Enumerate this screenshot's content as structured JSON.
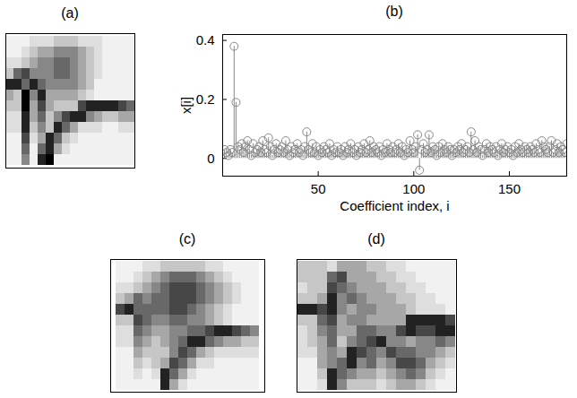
{
  "chart_data": [
    {
      "type": "heatmap",
      "title": "(a)",
      "tick_labels": false,
      "clim": [
        0,
        9
      ],
      "color": "greys",
      "cells": [
        [
          1,
          1,
          1,
          2,
          2,
          2,
          3,
          3,
          3,
          2,
          2,
          2,
          1,
          1,
          1,
          1
        ],
        [
          1,
          1,
          2,
          3,
          4,
          4,
          5,
          5,
          5,
          4,
          3,
          2,
          1,
          1,
          1,
          1
        ],
        [
          2,
          2,
          3,
          4,
          5,
          5,
          6,
          6,
          5,
          4,
          3,
          2,
          1,
          1,
          1,
          1
        ],
        [
          3,
          6,
          7,
          5,
          5,
          5,
          6,
          6,
          5,
          4,
          3,
          2,
          1,
          1,
          1,
          1
        ],
        [
          8,
          8,
          6,
          8,
          6,
          5,
          5,
          5,
          5,
          4,
          3,
          1,
          1,
          1,
          1,
          1
        ],
        [
          4,
          3,
          9,
          5,
          8,
          4,
          4,
          4,
          4,
          3,
          2,
          1,
          1,
          1,
          1,
          1
        ],
        [
          3,
          3,
          9,
          4,
          7,
          4,
          3,
          3,
          3,
          7,
          8,
          8,
          8,
          8,
          7,
          6
        ],
        [
          2,
          2,
          8,
          4,
          6,
          3,
          5,
          7,
          8,
          8,
          5,
          4,
          3,
          3,
          4,
          4
        ],
        [
          2,
          2,
          8,
          3,
          5,
          3,
          8,
          6,
          4,
          2,
          2,
          2,
          1,
          1,
          2,
          2
        ],
        [
          1,
          1,
          7,
          2,
          4,
          8,
          6,
          3,
          2,
          1,
          1,
          1,
          1,
          1,
          1,
          1
        ],
        [
          1,
          1,
          6,
          1,
          6,
          8,
          4,
          2,
          1,
          1,
          1,
          1,
          1,
          1,
          1,
          1
        ],
        [
          1,
          1,
          5,
          1,
          8,
          9,
          1,
          1,
          1,
          1,
          1,
          1,
          1,
          1,
          1,
          1
        ]
      ]
    },
    {
      "type": "stem",
      "title": "(b)",
      "x_label": "Coefficient index, i",
      "y_label": "x[i]",
      "color": "#888888",
      "marker": "circle",
      "xlim": [
        0,
        180
      ],
      "xticks": [
        50,
        100,
        150
      ],
      "ylim": [
        -0.06,
        0.42
      ],
      "yticks": [
        0,
        0.2,
        0.4
      ],
      "x": [
        1,
        2,
        3,
        4,
        5,
        6,
        7,
        8,
        9,
        10,
        11,
        12,
        13,
        14,
        15,
        16,
        17,
        18,
        19,
        20,
        21,
        22,
        23,
        24,
        25,
        26,
        27,
        28,
        29,
        30,
        31,
        32,
        33,
        34,
        35,
        36,
        37,
        38,
        39,
        40,
        41,
        42,
        43,
        44,
        45,
        46,
        47,
        48,
        49,
        50,
        51,
        52,
        53,
        54,
        55,
        56,
        57,
        58,
        59,
        60,
        61,
        62,
        63,
        64,
        65,
        66,
        67,
        68,
        69,
        70,
        71,
        72,
        73,
        74,
        75,
        76,
        77,
        78,
        79,
        80,
        81,
        82,
        83,
        84,
        85,
        86,
        87,
        88,
        89,
        90,
        91,
        92,
        93,
        94,
        95,
        96,
        97,
        98,
        99,
        100,
        101,
        102,
        103,
        104,
        105,
        106,
        107,
        108,
        109,
        110,
        111,
        112,
        113,
        114,
        115,
        116,
        117,
        118,
        119,
        120,
        121,
        122,
        123,
        124,
        125,
        126,
        127,
        128,
        129,
        130,
        131,
        132,
        133,
        134,
        135,
        136,
        137,
        138,
        139,
        140,
        141,
        142,
        143,
        144,
        145,
        146,
        147,
        148,
        149,
        150,
        151,
        152,
        153,
        154,
        155,
        156,
        157,
        158,
        159,
        160,
        161,
        162,
        163,
        164,
        165,
        166,
        167,
        168,
        169,
        170,
        171,
        172,
        173,
        174,
        175,
        176,
        177,
        178,
        179,
        180
      ],
      "values": [
        0.03,
        0.02,
        0.01,
        0.03,
        0.02,
        0.38,
        0.19,
        0.04,
        0.03,
        0.05,
        0.02,
        0.04,
        0.06,
        0.03,
        0.01,
        0.05,
        0.02,
        0.03,
        0.04,
        0.02,
        0.06,
        0.03,
        0.02,
        0.07,
        0.04,
        0.01,
        0.03,
        0.05,
        0.02,
        0.03,
        0.04,
        0.02,
        0.06,
        0.03,
        0.01,
        0.04,
        0.02,
        0.03,
        0.05,
        0.02,
        0.03,
        0.01,
        0.04,
        0.09,
        0.03,
        0.02,
        0.05,
        0.02,
        0.04,
        0.01,
        0.03,
        0.02,
        0.04,
        0.03,
        0.02,
        0.05,
        0.01,
        0.03,
        0.02,
        0.04,
        0.02,
        0.03,
        0.01,
        0.04,
        0.02,
        0.03,
        0.05,
        0.02,
        0.03,
        0.01,
        0.04,
        0.02,
        0.03,
        0.05,
        0.02,
        0.03,
        0.06,
        0.02,
        0.04,
        0.03,
        0.02,
        0.04,
        0.01,
        0.03,
        0.02,
        0.05,
        0.03,
        0.02,
        0.04,
        0.02,
        0.03,
        0.05,
        0.02,
        0.04,
        0.01,
        0.03,
        0.02,
        0.06,
        0.03,
        0.02,
        0.04,
        0.08,
        -0.04,
        0.03,
        0.05,
        0.02,
        0.03,
        0.08,
        0.02,
        0.04,
        0.03,
        0.01,
        0.04,
        0.02,
        0.05,
        0.03,
        0.02,
        0.04,
        0.03,
        0.01,
        0.03,
        0.02,
        0.04,
        0.03,
        0.05,
        0.02,
        0.03,
        0.04,
        0.02,
        0.09,
        0.03,
        0.06,
        0.02,
        0.04,
        0.03,
        0.01,
        0.03,
        0.05,
        0.02,
        0.04,
        0.03,
        0.02,
        0.04,
        0.01,
        0.03,
        0.05,
        0.02,
        0.03,
        0.04,
        0.02,
        0.03,
        0.01,
        0.04,
        0.02,
        0.05,
        0.03,
        0.02,
        0.04,
        0.03,
        0.02,
        0.04,
        0.03,
        0.02,
        0.05,
        0.03,
        0.02,
        0.06,
        0.04,
        0.03,
        0.02,
        0.04,
        0.06,
        0.02,
        0.03,
        0.05,
        0.02,
        0.04,
        0.03,
        0.02,
        0.05
      ]
    },
    {
      "type": "heatmap",
      "title": "(c)",
      "tick_labels": false,
      "clim": [
        0,
        9
      ],
      "color": "greys",
      "cells": [
        [
          1,
          1,
          1,
          2,
          2,
          3,
          3,
          3,
          3,
          3,
          2,
          2,
          1,
          1,
          1,
          1
        ],
        [
          1,
          1,
          2,
          3,
          4,
          5,
          6,
          6,
          6,
          5,
          4,
          3,
          2,
          1,
          1,
          1
        ],
        [
          2,
          2,
          3,
          4,
          5,
          6,
          7,
          7,
          7,
          6,
          5,
          4,
          3,
          2,
          1,
          1
        ],
        [
          3,
          4,
          6,
          5,
          6,
          6,
          7,
          7,
          7,
          6,
          5,
          4,
          3,
          2,
          1,
          1
        ],
        [
          7,
          8,
          6,
          6,
          6,
          6,
          7,
          7,
          6,
          5,
          4,
          3,
          2,
          1,
          1,
          1
        ],
        [
          3,
          3,
          7,
          6,
          5,
          5,
          6,
          6,
          5,
          5,
          4,
          3,
          2,
          1,
          1,
          1
        ],
        [
          2,
          2,
          6,
          5,
          4,
          4,
          5,
          5,
          6,
          6,
          7,
          8,
          8,
          7,
          6,
          5
        ],
        [
          2,
          2,
          5,
          4,
          3,
          4,
          5,
          6,
          8,
          8,
          6,
          5,
          4,
          4,
          3,
          3
        ],
        [
          1,
          1,
          4,
          3,
          3,
          3,
          5,
          7,
          6,
          4,
          3,
          2,
          2,
          2,
          2,
          2
        ],
        [
          1,
          1,
          3,
          2,
          3,
          4,
          7,
          6,
          4,
          2,
          2,
          1,
          1,
          1,
          1,
          1
        ],
        [
          1,
          1,
          2,
          1,
          2,
          8,
          6,
          4,
          2,
          1,
          1,
          1,
          1,
          1,
          1,
          1
        ],
        [
          1,
          1,
          1,
          1,
          1,
          8,
          4,
          2,
          1,
          1,
          1,
          1,
          1,
          1,
          1,
          1
        ]
      ]
    },
    {
      "type": "heatmap",
      "title": "(d)",
      "tick_labels": false,
      "clim": [
        0,
        9
      ],
      "color": "greys",
      "cells": [
        [
          3,
          3,
          3,
          2,
          4,
          4,
          4,
          3,
          3,
          2,
          2,
          1,
          1,
          1,
          1,
          1
        ],
        [
          3,
          3,
          3,
          6,
          7,
          4,
          4,
          4,
          3,
          3,
          2,
          2,
          1,
          1,
          1,
          1
        ],
        [
          2,
          3,
          3,
          7,
          6,
          5,
          4,
          4,
          4,
          3,
          3,
          2,
          2,
          1,
          1,
          1
        ],
        [
          3,
          3,
          4,
          8,
          5,
          6,
          5,
          4,
          4,
          4,
          3,
          3,
          2,
          2,
          1,
          1
        ],
        [
          8,
          8,
          7,
          8,
          5,
          4,
          5,
          5,
          4,
          4,
          4,
          3,
          2,
          2,
          2,
          1
        ],
        [
          3,
          3,
          6,
          7,
          4,
          5,
          5,
          4,
          4,
          4,
          4,
          8,
          8,
          8,
          8,
          7
        ],
        [
          2,
          3,
          5,
          6,
          4,
          4,
          6,
          6,
          5,
          5,
          7,
          8,
          7,
          7,
          8,
          8
        ],
        [
          2,
          3,
          4,
          6,
          3,
          5,
          6,
          7,
          8,
          5,
          5,
          4,
          5,
          5,
          6,
          5
        ],
        [
          2,
          2,
          4,
          5,
          4,
          8,
          7,
          6,
          5,
          7,
          6,
          6,
          5,
          5,
          4,
          3
        ],
        [
          1,
          1,
          4,
          5,
          6,
          8,
          5,
          6,
          4,
          5,
          7,
          7,
          6,
          4,
          3,
          2
        ],
        [
          1,
          1,
          3,
          8,
          6,
          5,
          4,
          4,
          3,
          4,
          5,
          6,
          5,
          3,
          2,
          1
        ],
        [
          1,
          1,
          2,
          8,
          5,
          3,
          3,
          3,
          2,
          3,
          4,
          4,
          3,
          2,
          1,
          1
        ]
      ]
    }
  ]
}
